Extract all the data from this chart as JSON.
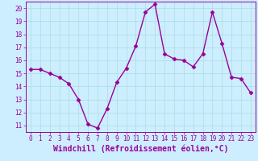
{
  "x": [
    0,
    1,
    2,
    3,
    4,
    5,
    6,
    7,
    8,
    9,
    10,
    11,
    12,
    13,
    14,
    15,
    16,
    17,
    18,
    19,
    20,
    21,
    22,
    23
  ],
  "y": [
    15.3,
    15.3,
    15.0,
    14.7,
    14.2,
    13.0,
    11.1,
    10.8,
    12.3,
    14.3,
    15.4,
    17.1,
    19.7,
    20.3,
    16.5,
    16.1,
    16.0,
    15.5,
    16.5,
    19.7,
    17.3,
    14.7,
    14.6,
    13.5
  ],
  "line_color": "#990099",
  "marker": "D",
  "markersize": 2.5,
  "linewidth": 1.0,
  "bg_color": "#cceeff",
  "grid_color": "#aadddd",
  "xlabel": "Windchill (Refroidissement éolien,°C)",
  "xlabel_fontsize": 7,
  "xlim": [
    -0.5,
    23.5
  ],
  "ylim": [
    10.5,
    20.5
  ],
  "yticks": [
    11,
    12,
    13,
    14,
    15,
    16,
    17,
    18,
    19,
    20
  ],
  "xticks": [
    0,
    1,
    2,
    3,
    4,
    5,
    6,
    7,
    8,
    9,
    10,
    11,
    12,
    13,
    14,
    15,
    16,
    17,
    18,
    19,
    20,
    21,
    22,
    23
  ],
  "tick_color": "#990099",
  "tick_fontsize": 5.5,
  "spine_color": "#990099"
}
